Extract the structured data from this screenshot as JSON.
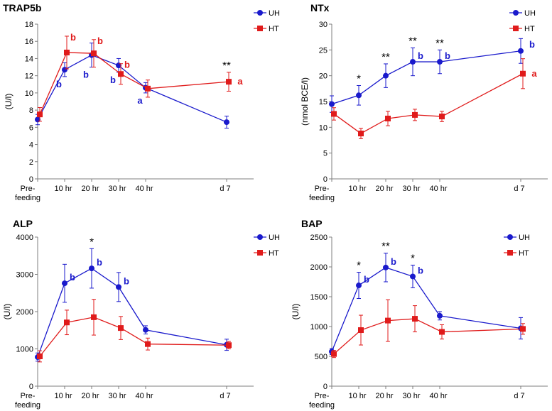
{
  "colors": {
    "UH": "#1a1acc",
    "HT": "#e01b1b",
    "axis": "#7f7f7f",
    "err": "#000000"
  },
  "chart_data": [
    {
      "type": "line",
      "title": "TRAP5b",
      "ylabel": "(U/l)",
      "ylim": [
        0,
        18
      ],
      "yticks": [
        0,
        2,
        4,
        6,
        8,
        10,
        12,
        14,
        16,
        18
      ],
      "categories": [
        "Pre-feeding",
        "10 hr",
        "20 hr",
        "30 hr",
        "40 hr",
        "d 7"
      ],
      "category_lines": [
        [
          "Pre-",
          "feeding"
        ],
        [
          "10 hr"
        ],
        [
          "20 hr"
        ],
        [
          "30 hr"
        ],
        [
          "40 hr"
        ],
        [
          "d 7"
        ]
      ],
      "x": [
        0,
        10,
        20,
        30,
        40,
        70
      ],
      "xlim": [
        0,
        80
      ],
      "legend": {
        "position": "top-right"
      },
      "series": [
        {
          "name": "UH",
          "values": [
            6.9,
            12.7,
            14.4,
            13.2,
            10.6,
            6.6
          ],
          "errors": [
            0.6,
            0.8,
            1.4,
            0.8,
            0.6,
            0.7
          ],
          "annotations": [
            null,
            "b",
            "b",
            "b",
            "a",
            null
          ]
        },
        {
          "name": "HT",
          "values": [
            7.5,
            14.7,
            14.6,
            12.2,
            10.5,
            11.3
          ],
          "errors": [
            0.8,
            1.9,
            1.6,
            1.2,
            1.0,
            1.1
          ],
          "annotations": [
            null,
            "b",
            "b",
            "b",
            null,
            "a"
          ]
        }
      ],
      "significance": [
        null,
        null,
        null,
        null,
        null,
        "**"
      ]
    },
    {
      "type": "line",
      "title": "NTx",
      "ylabel": "(nmol BCE/l)",
      "ylim": [
        0,
        30
      ],
      "yticks": [
        0,
        5,
        10,
        15,
        20,
        25,
        30
      ],
      "categories": [
        "Pre-feeding",
        "10 hr",
        "20 hr",
        "30 hr",
        "40 hr",
        "d 7"
      ],
      "category_lines": [
        [
          "Pre-",
          "feeding"
        ],
        [
          "10 hr"
        ],
        [
          "20 hr"
        ],
        [
          "30 hr"
        ],
        [
          "40 hr"
        ],
        [
          "d 7"
        ]
      ],
      "x": [
        0,
        10,
        20,
        30,
        40,
        70
      ],
      "xlim": [
        0,
        80
      ],
      "legend": {
        "position": "top-right"
      },
      "series": [
        {
          "name": "UH",
          "values": [
            14.5,
            16.2,
            20.0,
            22.7,
            22.7,
            24.8
          ],
          "errors": [
            1.6,
            1.9,
            2.3,
            2.7,
            2.3,
            2.4
          ],
          "annotations": [
            null,
            null,
            null,
            "b",
            "b",
            "b"
          ]
        },
        {
          "name": "HT",
          "values": [
            12.6,
            8.8,
            11.7,
            12.4,
            12.1,
            20.4
          ],
          "errors": [
            1.2,
            1.0,
            1.4,
            1.1,
            1.0,
            2.9
          ],
          "annotations": [
            null,
            null,
            null,
            null,
            null,
            "a"
          ]
        }
      ],
      "significance": [
        null,
        "*",
        "**",
        "**",
        "**",
        null
      ]
    },
    {
      "type": "line",
      "title": "ALP",
      "ylabel": "(U/l)",
      "ylim": [
        0,
        4000
      ],
      "yticks": [
        0,
        1000,
        2000,
        3000,
        4000
      ],
      "categories": [
        "Pre-feeding",
        "10 hr",
        "20 hr",
        "30 hr",
        "40 hr",
        "d 7"
      ],
      "category_lines": [
        [
          "Pre-",
          "feeding"
        ],
        [
          "10 hr"
        ],
        [
          "20 hr"
        ],
        [
          "30 hr"
        ],
        [
          "40 hr"
        ],
        [
          "d 7"
        ]
      ],
      "x": [
        0,
        10,
        20,
        30,
        40,
        70
      ],
      "xlim": [
        0,
        80
      ],
      "legend": {
        "position": "top-right"
      },
      "series": [
        {
          "name": "UH",
          "values": [
            780,
            2760,
            3160,
            2660,
            1510,
            1110
          ],
          "errors": [
            110,
            510,
            530,
            390,
            110,
            150
          ],
          "annotations": [
            null,
            "b",
            "b",
            "b",
            null,
            null
          ]
        },
        {
          "name": "HT",
          "values": [
            800,
            1710,
            1850,
            1560,
            1130,
            1100
          ],
          "errors": [
            150,
            330,
            480,
            310,
            160,
            100
          ],
          "annotations": [
            null,
            null,
            null,
            null,
            null,
            null
          ]
        }
      ],
      "significance": [
        null,
        null,
        "*",
        null,
        null,
        null
      ]
    },
    {
      "type": "line",
      "title": "BAP",
      "ylabel": "(U/l)",
      "ylim": [
        0,
        2500
      ],
      "yticks": [
        0,
        500,
        1000,
        1500,
        2000,
        2500
      ],
      "categories": [
        "Pre-feeding",
        "10 hr",
        "20 hr",
        "30 hr",
        "40 hr",
        "d 7"
      ],
      "category_lines": [
        [
          "Pre-",
          "feeding"
        ],
        [
          "10 hr"
        ],
        [
          "20 hr"
        ],
        [
          "30 hr"
        ],
        [
          "40 hr"
        ],
        [
          "d 7"
        ]
      ],
      "x": [
        0,
        10,
        20,
        30,
        40,
        70
      ],
      "xlim": [
        0,
        80
      ],
      "legend": {
        "position": "top-right"
      },
      "series": [
        {
          "name": "UH",
          "values": [
            580,
            1690,
            1990,
            1840,
            1180,
            970
          ],
          "errors": [
            50,
            220,
            240,
            190,
            70,
            180
          ],
          "annotations": [
            null,
            "b",
            "b",
            "b",
            null,
            null
          ]
        },
        {
          "name": "HT",
          "values": [
            540,
            940,
            1100,
            1130,
            910,
            960
          ],
          "errors": [
            60,
            250,
            350,
            220,
            120,
            90
          ],
          "annotations": [
            null,
            null,
            null,
            null,
            null,
            null
          ]
        }
      ],
      "significance": [
        null,
        "*",
        "**",
        "*",
        null,
        null
      ]
    }
  ]
}
